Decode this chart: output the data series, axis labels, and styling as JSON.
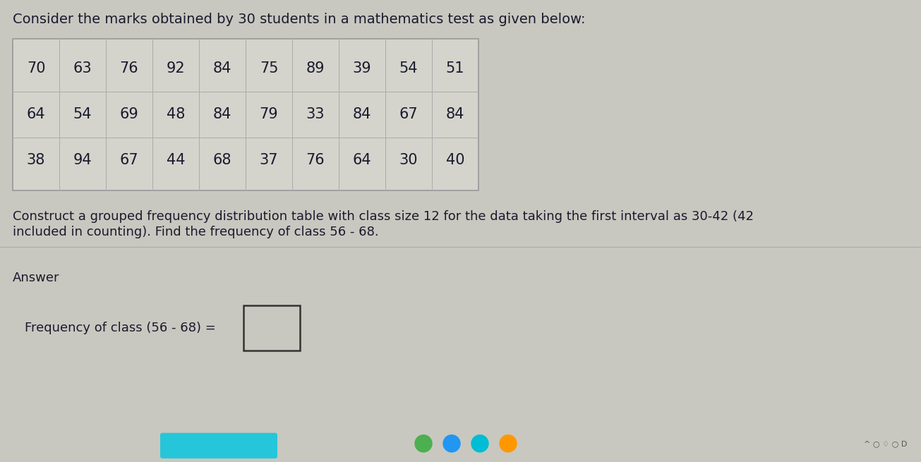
{
  "title": "Consider the marks obtained by 30 students in a mathematics test as given below:",
  "table_data": [
    [
      70,
      63,
      76,
      92,
      84,
      75,
      89,
      39,
      54,
      51
    ],
    [
      64,
      54,
      69,
      48,
      84,
      79,
      33,
      84,
      67,
      84
    ],
    [
      38,
      94,
      67,
      44,
      68,
      37,
      76,
      64,
      30,
      40
    ]
  ],
  "question_line1": "Construct a grouped frequency distribution table with class size 12 for the data taking the first interval as 30-42 (42",
  "question_line2": "included in counting). Find the frequency of class 56 - 68.",
  "answer_label": "Answer",
  "frequency_label": "Frequency of class (56 - 68) =",
  "bg_color": "#c8c8c0",
  "table_bg": "#c8c8c0",
  "table_border_color": "#999999",
  "text_color": "#1a1a2e",
  "title_fontsize": 14,
  "table_fontsize": 15,
  "question_fontsize": 13,
  "answer_fontsize": 13,
  "freq_fontsize": 13,
  "box_border_color": "#333333",
  "taskbar_color": "#1a1a1a",
  "teal_color": "#26c6da"
}
